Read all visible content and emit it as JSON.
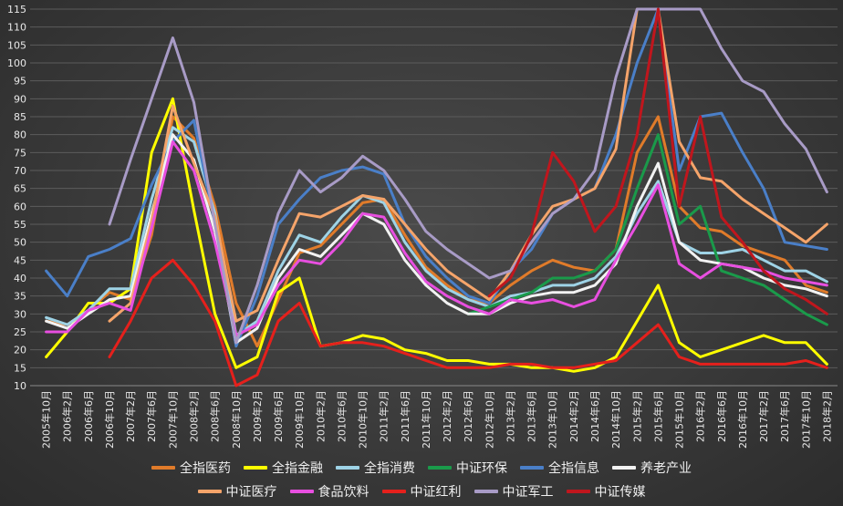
{
  "chart_data": {
    "type": "line",
    "title": "",
    "xlabel": "",
    "ylabel": "",
    "ylim": [
      10,
      115
    ],
    "yticks": [
      10,
      15,
      20,
      25,
      30,
      35,
      40,
      45,
      50,
      55,
      60,
      65,
      70,
      75,
      80,
      85,
      90,
      95,
      100,
      105,
      110,
      115
    ],
    "grid": true,
    "legend_position": "bottom",
    "x_tick_labels": [
      "2005年10月",
      "2006年2月",
      "2006年6月",
      "2006年10月",
      "2007年2月",
      "2007年6月",
      "2007年10月",
      "2008年2月",
      "2008年6月",
      "2008年10月",
      "2009年2月",
      "2009年6月",
      "2009年10月",
      "2010年2月",
      "2010年6月",
      "2010年10月",
      "2011年2月",
      "2011年6月",
      "2011年10月",
      "2012年2月",
      "2012年6月",
      "2012年10月",
      "2013年2月",
      "2013年6月",
      "2013年10月",
      "2014年2月",
      "2014年6月",
      "2014年10月",
      "2015年2月",
      "2015年6月",
      "2015年10月",
      "2016年2月",
      "2016年6月",
      "2016年10月",
      "2017年2月",
      "2017年6月",
      "2017年10月",
      "2018年2月"
    ],
    "series": [
      {
        "name": "全指医药",
        "color": "#e07b2a",
        "values": [
          28,
          27,
          31,
          36,
          34,
          52,
          85,
          79,
          60,
          33,
          21,
          34,
          47,
          49,
          55,
          61,
          62,
          52,
          43,
          38,
          34,
          33,
          38,
          42,
          45,
          43,
          42,
          48,
          75,
          85,
          60,
          54,
          53,
          49,
          47,
          45,
          38,
          36
        ]
      },
      {
        "name": "全指金融",
        "color": "#ffff00",
        "values": [
          18,
          25,
          33,
          33,
          37,
          75,
          90,
          59,
          30,
          15,
          18,
          36,
          40,
          21,
          22,
          24,
          23,
          20,
          19,
          17,
          17,
          16,
          16,
          15,
          15,
          14,
          15,
          18,
          28,
          38,
          22,
          18,
          20,
          22,
          24,
          22,
          22,
          16
        ]
      },
      {
        "name": "全指消费",
        "color": "#9ed3e6",
        "values": [
          29,
          27,
          31,
          37,
          37,
          62,
          82,
          78,
          58,
          24,
          28,
          42,
          52,
          50,
          57,
          63,
          61,
          50,
          42,
          37,
          34,
          32,
          35,
          36,
          38,
          38,
          40,
          46,
          58,
          67,
          50,
          47,
          47,
          48,
          45,
          42,
          42,
          39
        ]
      },
      {
        "name": "中证环保",
        "color": "#1a9a4a",
        "values": [
          null,
          null,
          null,
          null,
          null,
          null,
          null,
          null,
          null,
          null,
          null,
          null,
          null,
          null,
          null,
          null,
          null,
          null,
          null,
          null,
          30,
          32,
          34,
          36,
          40,
          40,
          42,
          48,
          65,
          80,
          55,
          60,
          42,
          40,
          38,
          34,
          30,
          27
        ]
      },
      {
        "name": "全指信息",
        "color": "#4a7fc8",
        "values": [
          42,
          35,
          46,
          48,
          51,
          66,
          78,
          84,
          55,
          21,
          35,
          55,
          62,
          68,
          70,
          71,
          69,
          55,
          46,
          40,
          35,
          33,
          42,
          48,
          58,
          62,
          65,
          80,
          100,
          115,
          70,
          85,
          86,
          75,
          65,
          50,
          49,
          48
        ]
      },
      {
        "name": "养老产业",
        "color": "#f2f2f2",
        "values": [
          28,
          26,
          30,
          34,
          35,
          58,
          80,
          73,
          53,
          22,
          26,
          40,
          48,
          46,
          52,
          58,
          55,
          45,
          38,
          33,
          30,
          30,
          33,
          35,
          36,
          36,
          38,
          44,
          60,
          72,
          50,
          45,
          44,
          43,
          40,
          38,
          37,
          35
        ]
      },
      {
        "name": "中证医疗",
        "color": "#f5a46a",
        "values": [
          null,
          null,
          null,
          28,
          33,
          56,
          88,
          72,
          57,
          28,
          31,
          45,
          58,
          57,
          60,
          63,
          62,
          55,
          48,
          42,
          38,
          34,
          42,
          52,
          60,
          62,
          65,
          76,
          115,
          115,
          78,
          68,
          67,
          62,
          58,
          54,
          50,
          55
        ]
      },
      {
        "name": "食品饮料",
        "color": "#e84fe0",
        "values": [
          25,
          25,
          31,
          33,
          31,
          54,
          78,
          70,
          50,
          24,
          27,
          38,
          45,
          44,
          50,
          58,
          57,
          47,
          39,
          35,
          32,
          30,
          34,
          33,
          34,
          32,
          34,
          45,
          55,
          66,
          44,
          40,
          44,
          43,
          42,
          40,
          39,
          38
        ]
      },
      {
        "name": "中证红利",
        "color": "#e5201c",
        "values": [
          null,
          null,
          null,
          18,
          28,
          40,
          45,
          38,
          28,
          10,
          13,
          28,
          33,
          21,
          22,
          22,
          21,
          19,
          17,
          15,
          15,
          15,
          16,
          16,
          15,
          15,
          16,
          17,
          22,
          27,
          18,
          16,
          16,
          16,
          16,
          16,
          17,
          15
        ]
      },
      {
        "name": "中证军工",
        "color": "#a89bc6",
        "values": [
          null,
          null,
          null,
          55,
          73,
          90,
          107,
          89,
          55,
          22,
          38,
          58,
          70,
          64,
          68,
          74,
          70,
          62,
          53,
          48,
          44,
          40,
          42,
          50,
          58,
          62,
          70,
          96,
          115,
          115,
          115,
          115,
          104,
          95,
          92,
          83,
          76,
          64
        ]
      },
      {
        "name": "中证传媒",
        "color": "#c0161d",
        "values": [
          null,
          null,
          null,
          null,
          null,
          null,
          null,
          null,
          null,
          null,
          null,
          null,
          null,
          null,
          null,
          null,
          null,
          null,
          null,
          null,
          null,
          35,
          40,
          52,
          75,
          67,
          53,
          60,
          80,
          115,
          60,
          85,
          57,
          50,
          42,
          37,
          34,
          30
        ]
      }
    ]
  }
}
